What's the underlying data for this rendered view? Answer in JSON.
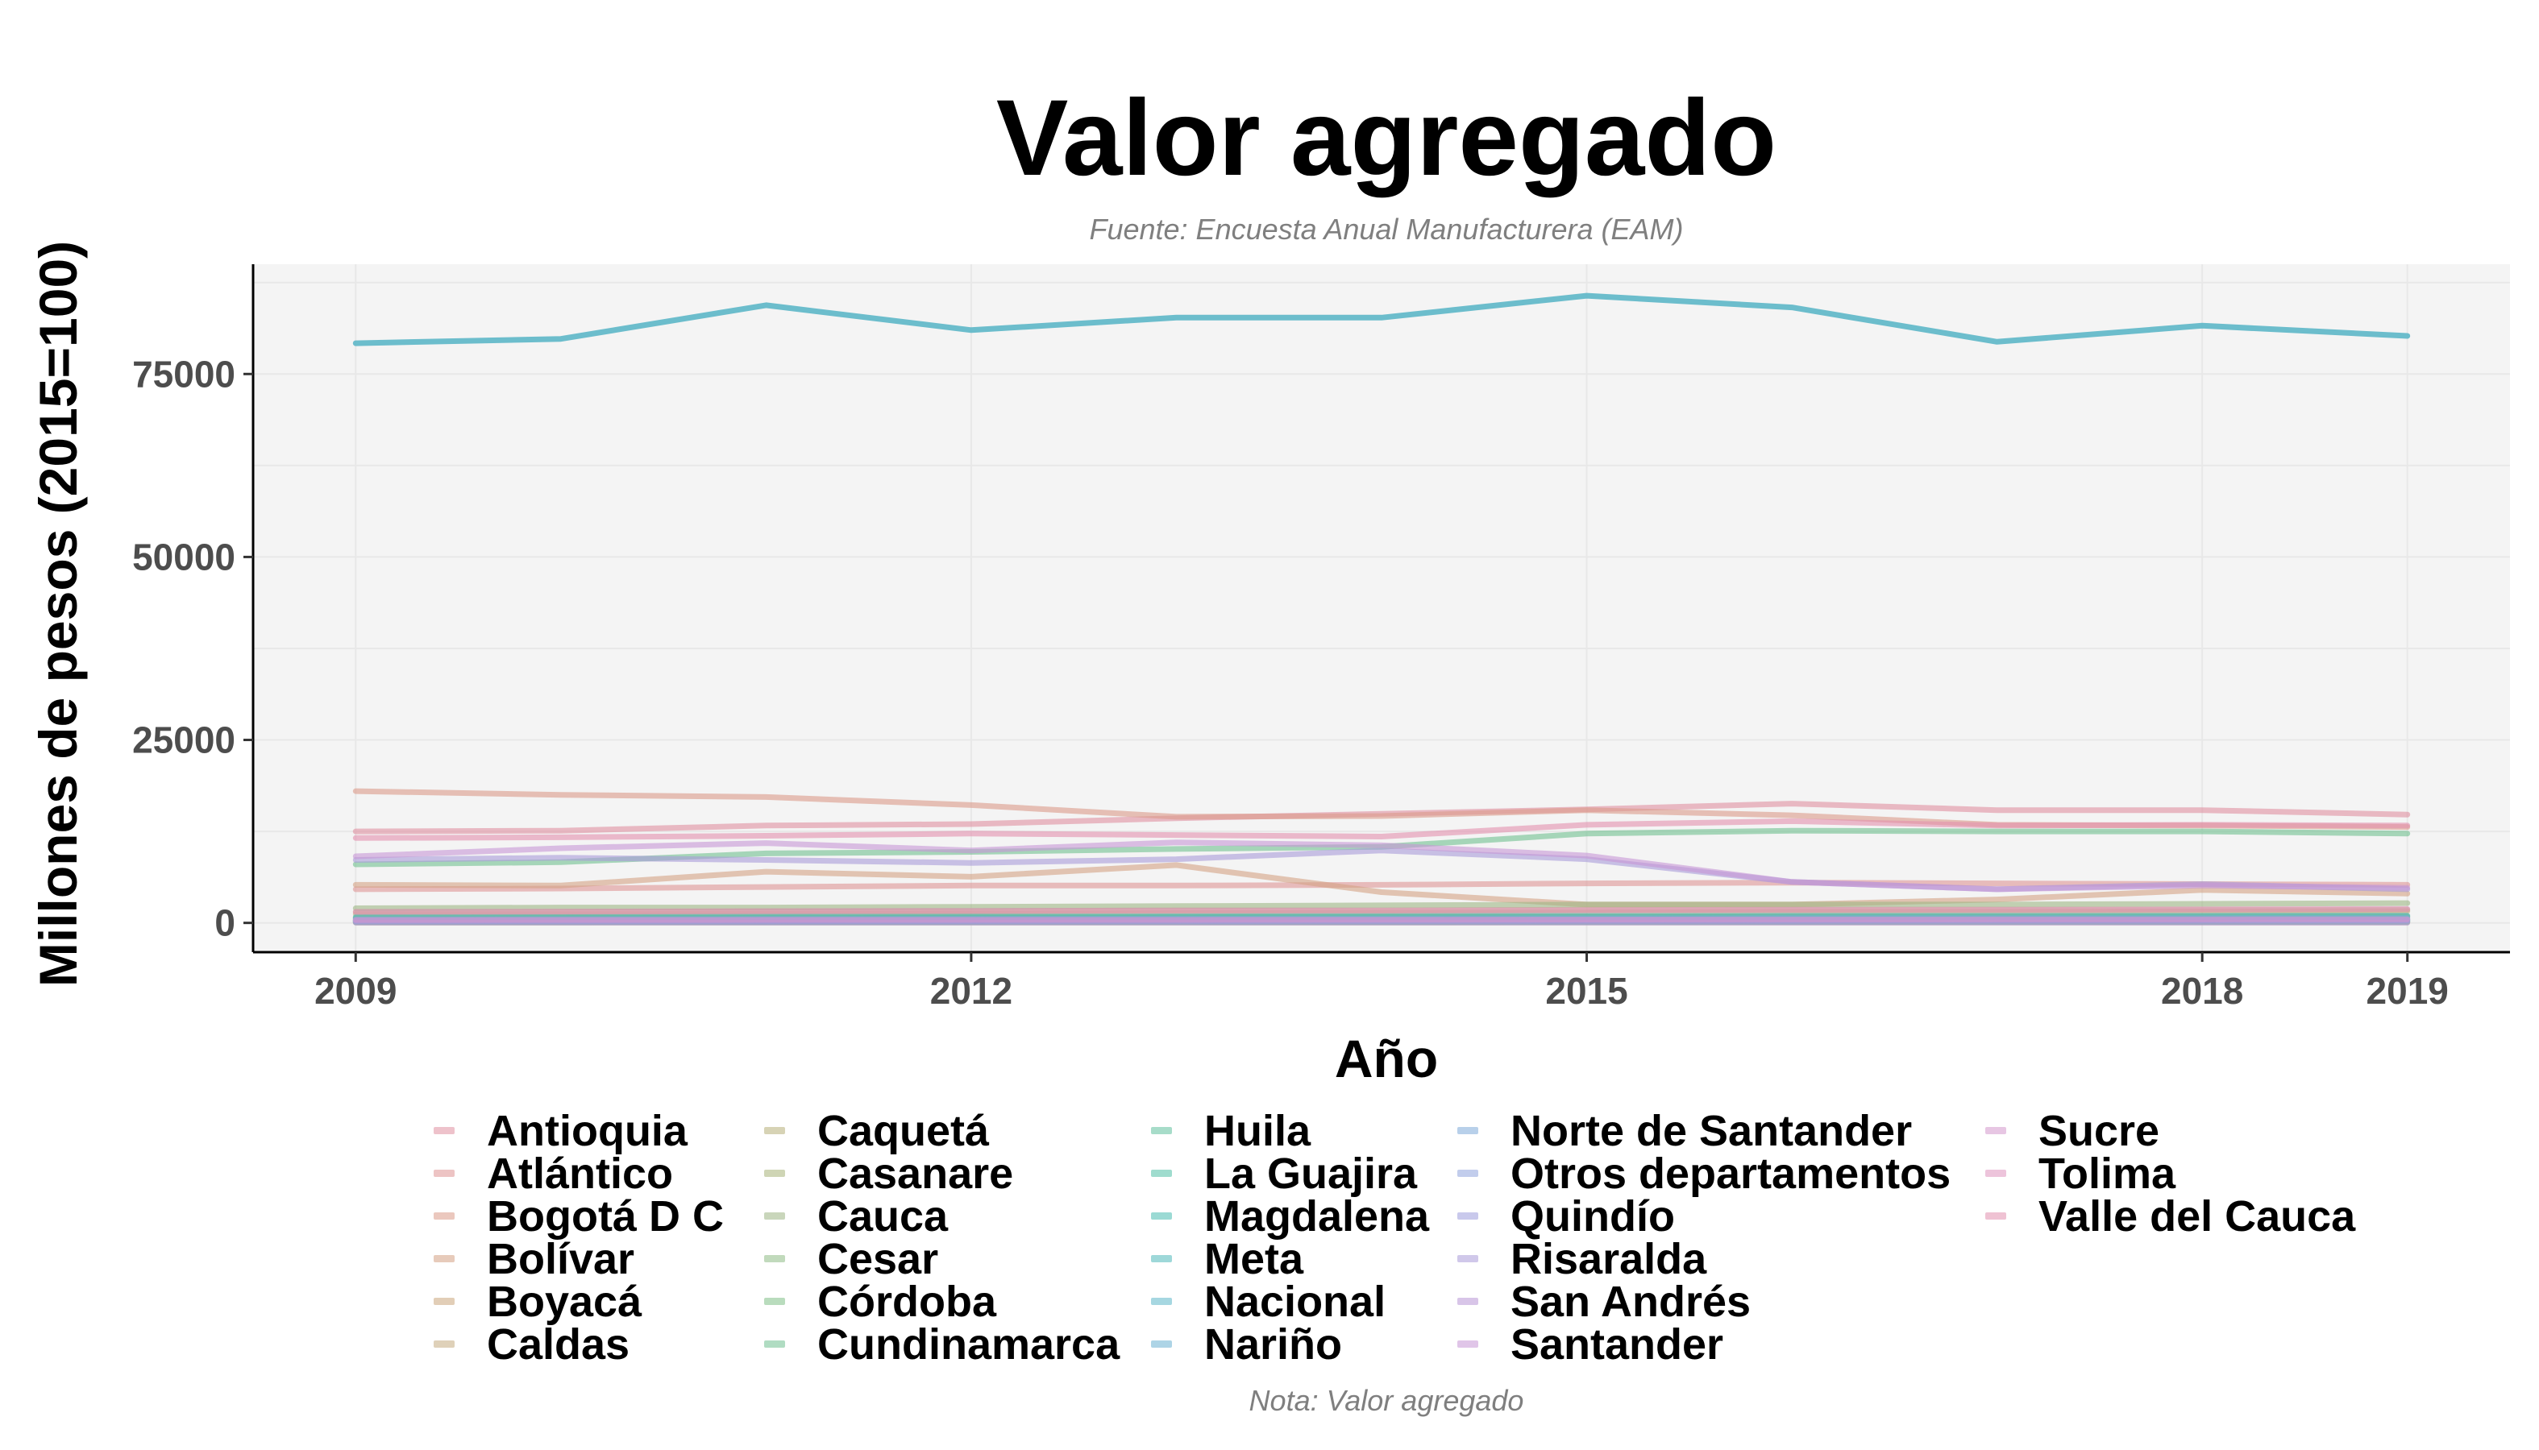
{
  "chart_data": {
    "type": "line",
    "title": "Valor agregado",
    "subtitle": "Fuente: Encuesta Anual Manufacturera (EAM)",
    "xlabel": "Año",
    "ylabel": "Millones de pesos (2015=100)",
    "caption": "Nota: Valor agregado",
    "x": [
      2009,
      2010,
      2011,
      2012,
      2013,
      2014,
      2015,
      2016,
      2017,
      2018,
      2019
    ],
    "x_ticks": [
      2009,
      2012,
      2015,
      2018,
      2019
    ],
    "y_ticks": [
      0,
      25000,
      50000,
      75000
    ],
    "y_tick_labels": [
      "0",
      "25000",
      "50000",
      "75000"
    ],
    "xlim": [
      2008.5,
      2019.5
    ],
    "ylim": [
      -4000,
      90000
    ],
    "grid": true,
    "legend_position": "bottom",
    "series": [
      {
        "name": "Antioquia",
        "color": "#e08fa0",
        "values": [
          12500,
          12600,
          13300,
          13500,
          14300,
          14900,
          15500,
          16300,
          15400,
          15400,
          14800
        ]
      },
      {
        "name": "Atlántico",
        "color": "#de9494",
        "values": [
          4600,
          4700,
          4900,
          5100,
          5100,
          5200,
          5400,
          5500,
          5400,
          5300,
          5200
        ]
      },
      {
        "name": "Bogotá D C",
        "color": "#db9a88",
        "values": [
          18000,
          17500,
          17200,
          16100,
          14500,
          14600,
          15400,
          14700,
          13400,
          13300,
          13100
        ]
      },
      {
        "name": "Bolívar",
        "color": "#d4a183",
        "values": [
          5200,
          5100,
          7000,
          6300,
          7900,
          4200,
          2500,
          2500,
          3200,
          4500,
          4000
        ]
      },
      {
        "name": "Boyacá",
        "color": "#cba67c",
        "values": [
          1500,
          1500,
          1600,
          1600,
          1700,
          1700,
          1800,
          1800,
          1800,
          1800,
          1800
        ]
      },
      {
        "name": "Caldas",
        "color": "#c4ab80",
        "values": [
          1200,
          1200,
          1250,
          1300,
          1350,
          1400,
          1400,
          1500,
          1500,
          1550,
          1600
        ]
      },
      {
        "name": "Caquetá",
        "color": "#b6ae78",
        "values": [
          50,
          50,
          60,
          60,
          60,
          60,
          70,
          70,
          70,
          70,
          70
        ]
      },
      {
        "name": "Casanare",
        "color": "#a8b278",
        "values": [
          150,
          150,
          160,
          170,
          180,
          180,
          200,
          200,
          210,
          210,
          220
        ]
      },
      {
        "name": "Cauca",
        "color": "#9cb584",
        "values": [
          2000,
          2100,
          2100,
          2200,
          2300,
          2400,
          2500,
          2500,
          2500,
          2600,
          2700
        ]
      },
      {
        "name": "Cesar",
        "color": "#8ebc85",
        "values": [
          600,
          650,
          700,
          720,
          750,
          780,
          800,
          820,
          830,
          840,
          850
        ]
      },
      {
        "name": "Córdoba",
        "color": "#7fbf86",
        "values": [
          700,
          720,
          740,
          760,
          780,
          800,
          820,
          830,
          840,
          850,
          860
        ]
      },
      {
        "name": "Cundinamarca",
        "color": "#6fc08f",
        "values": [
          8000,
          8300,
          9500,
          9700,
          10100,
          10400,
          12200,
          12600,
          12500,
          12500,
          12200
        ]
      },
      {
        "name": "Huila",
        "color": "#5fc09c",
        "values": [
          400,
          420,
          440,
          450,
          460,
          470,
          480,
          490,
          500,
          500,
          510
        ]
      },
      {
        "name": "La Guajira",
        "color": "#50bfa6",
        "values": [
          100,
          100,
          110,
          110,
          120,
          120,
          120,
          130,
          130,
          130,
          140
        ]
      },
      {
        "name": "Magdalena",
        "color": "#48bcb0",
        "values": [
          300,
          310,
          320,
          330,
          340,
          350,
          360,
          370,
          380,
          390,
          400
        ]
      },
      {
        "name": "Meta",
        "color": "#4fb8ba",
        "values": [
          800,
          820,
          850,
          870,
          900,
          930,
          950,
          970,
          980,
          990,
          1000
        ]
      },
      {
        "name": "Nacional",
        "color": "#5db7c8",
        "values": [
          79200,
          79800,
          84400,
          81000,
          82700,
          82700,
          85700,
          84100,
          79400,
          81600,
          80200
        ]
      },
      {
        "name": "Nariño",
        "color": "#6ab0d2",
        "values": [
          250,
          260,
          270,
          280,
          290,
          300,
          310,
          320,
          330,
          340,
          350
        ]
      },
      {
        "name": "Norte de Santander",
        "color": "#7eaad8",
        "values": [
          500,
          520,
          540,
          560,
          580,
          600,
          620,
          640,
          650,
          660,
          670
        ]
      },
      {
        "name": "Otros departamentos",
        "color": "#8fa4dc",
        "values": [
          200,
          210,
          220,
          230,
          240,
          250,
          260,
          270,
          280,
          290,
          300
        ]
      },
      {
        "name": "Quindío",
        "color": "#9c9ddc",
        "values": [
          350,
          360,
          370,
          380,
          390,
          400,
          410,
          420,
          430,
          440,
          450
        ]
      },
      {
        "name": "Risaralda",
        "color": "#a99bd8",
        "values": [
          8600,
          8900,
          8600,
          8200,
          8700,
          9900,
          8700,
          5600,
          4600,
          5300,
          4600
        ]
      },
      {
        "name": "San Andrés",
        "color": "#b896d5",
        "values": [
          30,
          30,
          30,
          30,
          30,
          30,
          30,
          30,
          30,
          30,
          30
        ]
      },
      {
        "name": "Santander",
        "color": "#c696d6",
        "values": [
          9100,
          10200,
          10900,
          9900,
          11000,
          10600,
          9200,
          5600,
          4600,
          5100,
          4800
        ]
      },
      {
        "name": "Sucre",
        "color": "#d497cc",
        "values": [
          400,
          410,
          420,
          430,
          440,
          450,
          460,
          470,
          480,
          490,
          500
        ]
      },
      {
        "name": "Tolima",
        "color": "#de93bd",
        "values": [
          1500,
          1550,
          1600,
          1650,
          1700,
          1700,
          1750,
          1800,
          1800,
          1850,
          1900
        ]
      },
      {
        "name": "Valle del Cauca",
        "color": "#e28fae",
        "values": [
          11600,
          11700,
          11900,
          12200,
          12000,
          11800,
          13400,
          13900,
          13300,
          13400,
          13300
        ]
      }
    ]
  }
}
